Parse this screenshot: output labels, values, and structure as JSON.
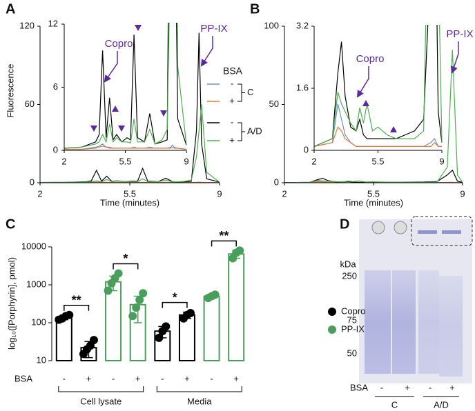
{
  "panels": [
    "A",
    "B",
    "C",
    "D"
  ],
  "chart_data": [
    {
      "type": "line",
      "ylabel": "Fluorescence",
      "xlabel": "Time (minutes)",
      "xlim": [
        2,
        9
      ],
      "xticks": [
        2,
        5.5,
        9
      ],
      "ylim": [
        0,
        120
      ],
      "yticks": [
        0,
        60,
        120
      ],
      "inset": {
        "xlim": [
          2,
          9
        ],
        "xticks": [
          2,
          5.5,
          9
        ],
        "ylim": [
          0,
          12
        ],
        "yticks": [
          0,
          6,
          12
        ]
      },
      "annotations": [
        "Copro",
        "PP-IX"
      ],
      "legend": {
        "title": "BSA",
        "groups": [
          "C",
          "A/D"
        ]
      },
      "x": [
        2,
        3,
        3.8,
        4.0,
        4.2,
        4.4,
        4.6,
        4.8,
        5.0,
        5.3,
        5.6,
        5.8,
        6.0,
        6.2,
        6.6,
        6.9,
        7.2,
        7.6,
        7.9,
        8.1,
        8.2,
        8.3,
        8.5,
        9
      ],
      "series": [
        {
          "name": "-",
          "group": "C",
          "color": "#6b8fd6",
          "values": [
            0.1,
            0.1,
            0.3,
            0.4,
            0.6,
            0.3,
            0.3,
            0.2,
            0.2,
            0.2,
            0.2,
            0.2,
            0.3,
            0.2,
            0.2,
            0.3,
            0.2,
            0.2,
            0.2,
            0.3,
            0.5,
            0.3,
            0.2,
            0.1
          ]
        },
        {
          "name": "+",
          "group": "C",
          "color": "#e07b39",
          "values": [
            0.1,
            0.1,
            0.2,
            0.3,
            0.4,
            0.3,
            0.2,
            0.2,
            0.2,
            0.2,
            0.2,
            0.2,
            0.2,
            0.2,
            0.2,
            0.2,
            0.2,
            0.2,
            0.2,
            0.2,
            0.3,
            0.2,
            0.2,
            0.1
          ]
        },
        {
          "name": "-",
          "group": "A/D",
          "color": "#000000",
          "values": [
            0.2,
            0.3,
            0.8,
            1.5,
            9.5,
            1.2,
            5,
            1,
            1.5,
            0.8,
            1.2,
            1,
            11,
            1.2,
            0.8,
            3.5,
            0.6,
            0.8,
            1,
            40,
            115,
            30,
            3,
            0.5
          ]
        },
        {
          "name": "+",
          "group": "A/D",
          "color": "#4caf50",
          "values": [
            0.2,
            0.3,
            0.6,
            0.8,
            1.5,
            0.8,
            2.5,
            0.8,
            1.2,
            0.8,
            0.8,
            0.7,
            3,
            0.8,
            0.8,
            2,
            0.6,
            1,
            2,
            20,
            40,
            60,
            8,
            0.5
          ]
        }
      ]
    },
    {
      "type": "line",
      "xlabel": "Time (minutes)",
      "xlim": [
        2,
        9
      ],
      "xticks": [
        2,
        5.5,
        9
      ],
      "ylim": [
        0,
        100
      ],
      "yticks": [
        0,
        50,
        100
      ],
      "inset": {
        "xlim": [
          2,
          9
        ],
        "xticks": [
          2,
          5.5,
          9
        ],
        "ylim": [
          0,
          3.2
        ],
        "yticks": [
          0,
          1.6,
          3.2
        ]
      },
      "annotations": [
        "Copro",
        "PP-IX"
      ],
      "x": [
        2,
        3,
        3.3,
        3.5,
        3.7,
        4.0,
        4.3,
        4.5,
        4.7,
        4.9,
        5.2,
        5.5,
        6.0,
        6.5,
        7.0,
        7.5,
        8.0,
        8.4,
        8.6,
        8.8,
        9
      ],
      "series": [
        {
          "name": "-",
          "group": "C",
          "color": "#6b8fd6",
          "values": [
            0.1,
            0.2,
            1.2,
            0.8,
            0.4,
            0.2,
            0.1,
            0.1,
            0.1,
            0.1,
            0.1,
            0.1,
            0.1,
            0.1,
            0.1,
            0.1,
            0.1,
            0.2,
            0.3,
            0.1,
            0.1
          ]
        },
        {
          "name": "+",
          "group": "C",
          "color": "#e07b39",
          "values": [
            0.1,
            0.2,
            0.6,
            0.5,
            0.3,
            0.2,
            0.1,
            0.1,
            0.1,
            0.1,
            0.1,
            0.1,
            0.1,
            0.1,
            0.1,
            0.1,
            0.1,
            0.1,
            0.2,
            0.1,
            0.1
          ]
        },
        {
          "name": "-",
          "group": "A/D",
          "color": "#000000",
          "values": [
            0.1,
            0.3,
            2,
            2.8,
            1.4,
            0.6,
            0.5,
            0.8,
            0.4,
            0.3,
            0.3,
            0.3,
            0.3,
            0.3,
            0.4,
            0.5,
            0.8,
            5,
            8,
            1,
            0.2
          ]
        },
        {
          "name": "+",
          "group": "A/D",
          "color": "#4caf50",
          "values": [
            0.1,
            0.3,
            1.5,
            1.2,
            1,
            0.7,
            0.5,
            1.1,
            0.7,
            1.2,
            0.5,
            0.6,
            0.4,
            0.3,
            0.3,
            0.3,
            0.5,
            10,
            85,
            5,
            0.2
          ]
        }
      ]
    },
    {
      "type": "bar",
      "log_scale": true,
      "ylabel": "log₁₀([Porphyrin], pmol)",
      "xlabel": "BSA",
      "ylim": [
        10,
        10000
      ],
      "yticks": [
        10,
        100,
        1000,
        10000
      ],
      "categories": [
        "-",
        "+",
        "-",
        "+",
        "-",
        "+",
        "-",
        "+"
      ],
      "groups": [
        "Cell lysate",
        "Media"
      ],
      "significance": [
        "**",
        "*",
        "*",
        "**"
      ],
      "series": [
        {
          "name": "Copro",
          "color": "#000000",
          "values": [
            140,
            22,
            null,
            null,
            60,
            160,
            null,
            null
          ],
          "errors": [
            20,
            10,
            null,
            null,
            20,
            30,
            null,
            null
          ],
          "points": [
            [
              120,
              130,
              150,
              160
            ],
            [
              15,
              20,
              25,
              35
            ],
            null,
            null,
            [
              40,
              60,
              80
            ],
            [
              130,
              160,
              180
            ],
            null,
            null
          ]
        },
        {
          "name": "PP-IX",
          "color": "#4a9e5c",
          "values": [
            null,
            null,
            1200,
            300,
            null,
            null,
            500,
            6500
          ],
          "errors": [
            null,
            null,
            500,
            200,
            null,
            null,
            60,
            1500
          ],
          "points": [
            null,
            null,
            [
              700,
              1100,
              1500,
              2000
            ],
            [
              150,
              250,
              400,
              600
            ],
            null,
            null,
            [
              450,
              500,
              550
            ],
            [
              5000,
              7000,
              8000
            ]
          ]
        }
      ]
    }
  ],
  "gel": {
    "kda_label": "kDa",
    "markers": [
      "250",
      "75",
      "50"
    ],
    "lane_label": "BSA",
    "lanes": [
      "-",
      "+",
      "-",
      "+"
    ],
    "groups": [
      "C",
      "A/D"
    ]
  }
}
